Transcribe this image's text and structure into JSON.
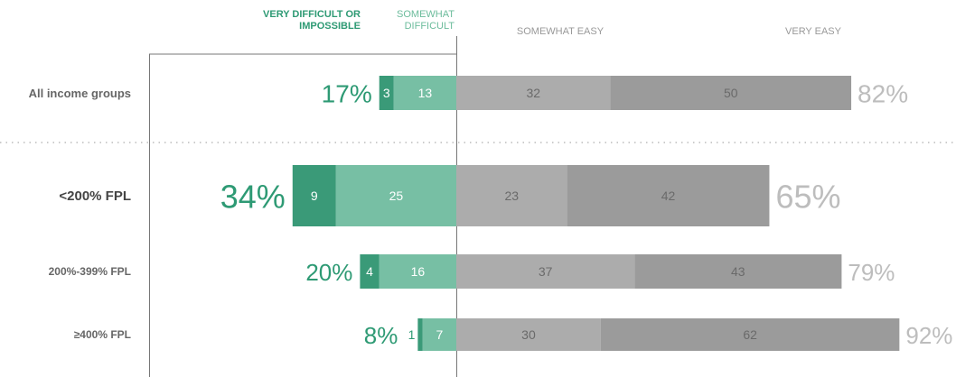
{
  "chart_data": {
    "type": "diverging-bar",
    "categories": [
      "All income groups",
      "<200% FPL",
      "200%-399% FPL",
      "≥400% FPL"
    ],
    "series": [
      {
        "name": "VERY DIFFICULT OR IMPOSSIBLE",
        "color": "#3a9a78",
        "side": "left",
        "values": [
          3,
          9,
          4,
          1
        ]
      },
      {
        "name": "SOMEWHAT DIFFICULT",
        "color": "#77bfa4",
        "side": "left",
        "values": [
          13,
          25,
          16,
          7
        ]
      },
      {
        "name": "SOMEWHAT EASY",
        "color": "#acacac",
        "side": "right",
        "values": [
          32,
          23,
          37,
          30
        ]
      },
      {
        "name": "VERY EASY",
        "color": "#9b9b9b",
        "side": "right",
        "values": [
          50,
          42,
          43,
          62
        ]
      }
    ],
    "left_totals": [
      "17%",
      "34%",
      "20%",
      "8%"
    ],
    "right_totals": [
      "82%",
      "65%",
      "79%",
      "92%"
    ]
  }
}
